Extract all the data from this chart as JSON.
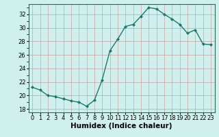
{
  "x": [
    0,
    1,
    2,
    3,
    4,
    5,
    6,
    7,
    8,
    9,
    10,
    11,
    12,
    13,
    14,
    15,
    16,
    17,
    18,
    19,
    20,
    21,
    22,
    23
  ],
  "y": [
    21.2,
    20.8,
    20.0,
    19.8,
    19.5,
    19.2,
    19.0,
    18.4,
    19.3,
    22.3,
    26.6,
    28.3,
    30.2,
    30.5,
    31.7,
    33.0,
    32.8,
    32.0,
    31.3,
    30.5,
    29.2,
    29.7,
    27.6,
    27.5
  ],
  "line_color": "#1a7a6a",
  "marker": "D",
  "marker_size": 2.0,
  "linewidth": 1.0,
  "xlabel": "Humidex (Indice chaleur)",
  "ylim": [
    17.5,
    33.5
  ],
  "xlim": [
    -0.5,
    23.5
  ],
  "yticks": [
    18,
    20,
    22,
    24,
    26,
    28,
    30,
    32
  ],
  "xticks": [
    0,
    1,
    2,
    3,
    4,
    5,
    6,
    7,
    8,
    9,
    10,
    11,
    12,
    13,
    14,
    15,
    16,
    17,
    18,
    19,
    20,
    21,
    22,
    23
  ],
  "bg_color": "#cff0ec",
  "grid_color_major": "#c8a0a0",
  "grid_color_minor": "#d8e8e8",
  "xlabel_fontsize": 7.5,
  "tick_fontsize": 6.0
}
